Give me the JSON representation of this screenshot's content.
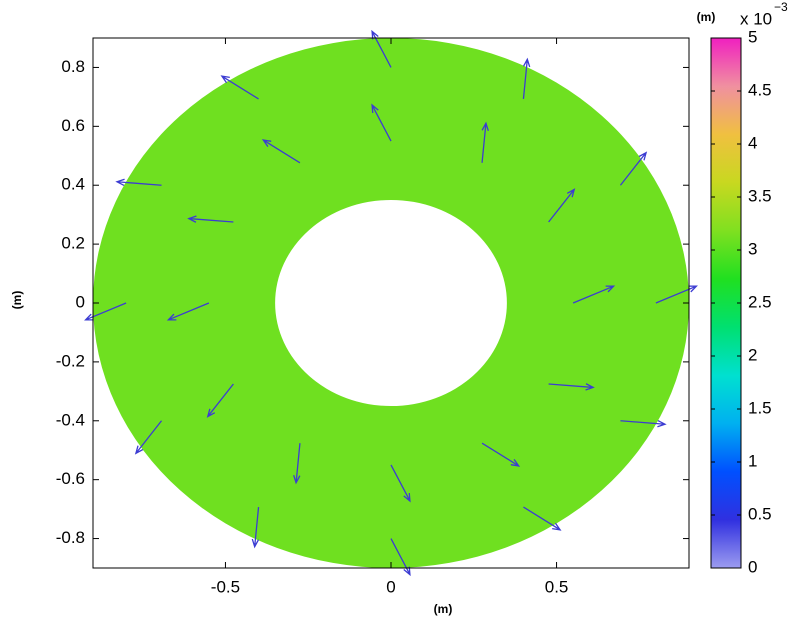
{
  "chart_data": {
    "type": "quiver",
    "xlabel": "(m)",
    "ylabel": "(m)",
    "xlim": [
      -0.9,
      0.9
    ],
    "ylim": [
      -0.9,
      0.9
    ],
    "xticks": [
      -0.5,
      0,
      0.5
    ],
    "yticks": [
      -0.8,
      -0.6,
      -0.4,
      -0.2,
      0,
      0.2,
      0.4,
      0.6,
      0.8
    ],
    "outer_radius": 0.9,
    "inner_radius": 0.35,
    "field_value": 3.1,
    "arrow_color": "#3c3cd2",
    "colormap": [
      "#9c9cf0",
      "#3030e0",
      "#0050ff",
      "#00b0f0",
      "#00e0d0",
      "#00e070",
      "#20e020",
      "#80e020",
      "#c8d820",
      "#f0c040",
      "#f090a0",
      "#f020c0"
    ],
    "colorbar_label": "(m)",
    "colorbar_scale": "x 10",
    "colorbar_exponent": "−3",
    "clim": [
      0,
      5
    ],
    "cticks": [
      0,
      0.5,
      1,
      1.5,
      2,
      2.5,
      3,
      3.5,
      4,
      4.5,
      5
    ],
    "x": [
      0.55,
      0.8,
      0.476,
      0.693,
      0.275,
      0.4,
      0,
      0,
      -0.275,
      -0.4,
      -0.476,
      -0.693,
      -0.55,
      -0.8,
      -0.476,
      -0.693,
      -0.275,
      -0.4,
      0,
      0,
      0.275,
      0.4,
      0.476,
      0.693
    ],
    "y": [
      0,
      0,
      0.275,
      0.4,
      0.476,
      0.693,
      0.55,
      0.8,
      0.476,
      0.693,
      0.275,
      0.4,
      0,
      0,
      -0.275,
      -0.4,
      -0.476,
      -0.693,
      -0.55,
      -0.8,
      -0.476,
      -0.693,
      -0.275,
      -0.4
    ],
    "u": [
      2.72,
      2.72,
      1.72,
      1.72,
      0.26,
      0.26,
      -1.27,
      -1.27,
      -2.46,
      -2.46,
      -2.99,
      -2.99,
      -2.72,
      -2.72,
      -1.72,
      -1.72,
      -0.26,
      -0.26,
      1.27,
      1.27,
      2.46,
      2.46,
      2.99,
      2.99
    ],
    "v": [
      1.27,
      1.27,
      2.46,
      2.46,
      2.99,
      2.99,
      2.72,
      2.72,
      1.72,
      1.72,
      0.26,
      0.26,
      -1.27,
      -1.27,
      -2.46,
      -2.46,
      -2.99,
      -2.99,
      -2.72,
      -2.72,
      -1.72,
      -1.72,
      -0.26,
      -0.26
    ]
  }
}
